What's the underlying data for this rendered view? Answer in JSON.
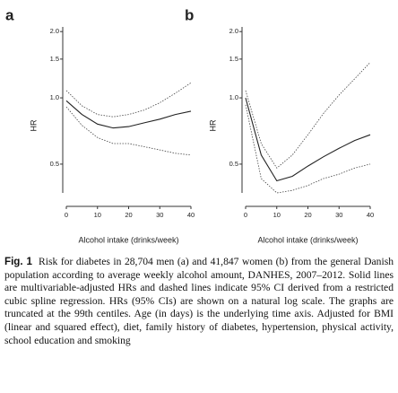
{
  "chart_data": [
    {
      "type": "line",
      "panel_label": "a",
      "ylabel": "HR",
      "xlabel": "Alcohol intake (drinks/week)",
      "log_y": true,
      "x": [
        0,
        5,
        10,
        15,
        20,
        25,
        30,
        35,
        40
      ],
      "xlim": [
        0,
        40
      ],
      "xticks": [
        0,
        10,
        20,
        30,
        40
      ],
      "ylim": [
        0.37,
        2.1
      ],
      "yticks": [
        {
          "value": 2,
          "label": "2.0"
        },
        1.5,
        {
          "value": 1,
          "label": "1.0"
        },
        0.5
      ],
      "series": [
        {
          "style": "solid",
          "color": "#222222",
          "values": [
            0.97,
            0.84,
            0.76,
            0.73,
            0.74,
            0.77,
            0.8,
            0.84,
            0.87
          ]
        },
        {
          "style": "dashed",
          "color": "#444444",
          "values": [
            1.08,
            0.92,
            0.84,
            0.82,
            0.84,
            0.88,
            0.95,
            1.05,
            1.17
          ]
        },
        {
          "style": "dashed",
          "color": "#444444",
          "values": [
            0.91,
            0.75,
            0.66,
            0.62,
            0.62,
            0.6,
            0.58,
            0.56,
            0.55
          ]
        }
      ]
    },
    {
      "type": "line",
      "panel_label": "b",
      "ylabel": "HR",
      "xlabel": "Alcohol intake (drinks/week)",
      "log_y": true,
      "x": [
        0,
        5,
        10,
        15,
        20,
        25,
        30,
        35,
        40
      ],
      "xlim": [
        0,
        40
      ],
      "xticks": [
        0,
        10,
        20,
        30,
        40
      ],
      "ylim": [
        0.37,
        2.1
      ],
      "yticks": [
        {
          "value": 2,
          "label": "2.0"
        },
        1.5,
        {
          "value": 1,
          "label": "1.0"
        },
        0.5
      ],
      "series": [
        {
          "style": "solid",
          "color": "#222222",
          "values": [
            1.0,
            0.55,
            0.42,
            0.44,
            0.49,
            0.54,
            0.59,
            0.64,
            0.68
          ]
        },
        {
          "style": "dashed",
          "color": "#444444",
          "values": [
            1.08,
            0.62,
            0.48,
            0.55,
            0.68,
            0.85,
            1.03,
            1.22,
            1.45
          ]
        },
        {
          "style": "dashed",
          "color": "#444444",
          "values": [
            0.93,
            0.43,
            0.37,
            0.38,
            0.4,
            0.43,
            0.45,
            0.48,
            0.5
          ]
        }
      ]
    }
  ],
  "caption": {
    "label": "Fig. 1",
    "text": "Risk for diabetes in 28,704 men (a) and 41,847 women (b) from the general Danish population according to average weekly alcohol amount, DANHES, 2007–2012. Solid lines are multivariable-adjusted HRs and dashed lines indicate 95% CI derived from a restricted cubic spline regression. HRs (95% CIs) are shown on a natural log scale. The graphs are truncated at the 99th centiles. Age (in days) is the underlying time axis. Adjusted for BMI (linear and squared effect), diet, family history of diabetes, hypertension, physical activity, school education and smoking"
  }
}
